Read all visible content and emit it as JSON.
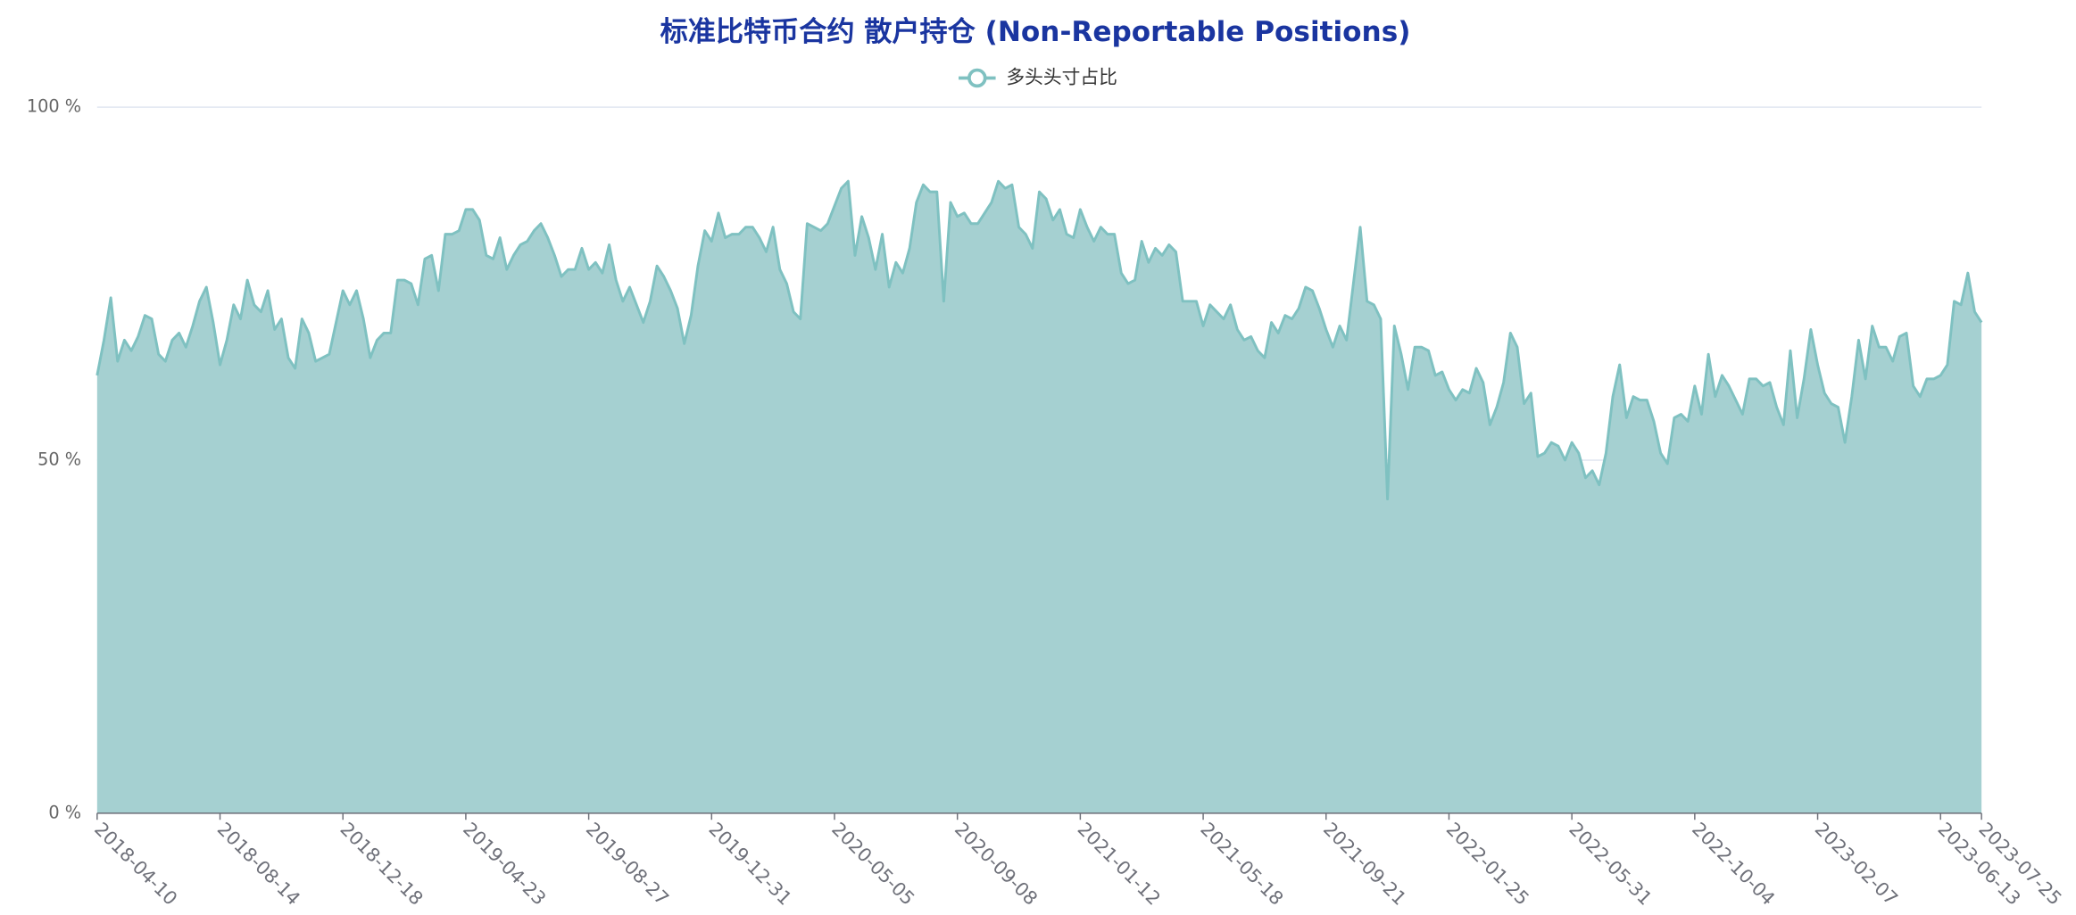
{
  "chart_data": {
    "type": "area",
    "title": "标准比特币合约 散户持仓 (Non-Reportable Positions)",
    "categories": [
      "2018-04-10",
      null,
      null,
      null,
      null,
      null,
      null,
      null,
      null,
      null,
      null,
      null,
      null,
      null,
      null,
      null,
      null,
      null,
      "2018-08-14",
      null,
      null,
      null,
      null,
      null,
      null,
      null,
      null,
      null,
      null,
      null,
      null,
      null,
      null,
      null,
      null,
      null,
      "2018-12-18",
      null,
      null,
      null,
      null,
      null,
      null,
      null,
      null,
      null,
      null,
      null,
      null,
      null,
      null,
      null,
      null,
      null,
      "2019-04-23",
      null,
      null,
      null,
      null,
      null,
      null,
      null,
      null,
      null,
      null,
      null,
      null,
      null,
      null,
      null,
      null,
      null,
      "2019-08-27",
      null,
      null,
      null,
      null,
      null,
      null,
      null,
      null,
      null,
      null,
      null,
      null,
      null,
      null,
      null,
      null,
      null,
      "2019-12-31",
      null,
      null,
      null,
      null,
      null,
      null,
      null,
      null,
      null,
      null,
      null,
      null,
      null,
      null,
      null,
      null,
      null,
      "2020-05-05",
      null,
      null,
      null,
      null,
      null,
      null,
      null,
      null,
      null,
      null,
      null,
      null,
      null,
      null,
      null,
      null,
      null,
      "2020-09-08",
      null,
      null,
      null,
      null,
      null,
      null,
      null,
      null,
      null,
      null,
      null,
      null,
      null,
      null,
      null,
      null,
      null,
      "2021-01-12",
      null,
      null,
      null,
      null,
      null,
      null,
      null,
      null,
      null,
      null,
      null,
      null,
      null,
      null,
      null,
      null,
      null,
      "2021-05-18",
      null,
      null,
      null,
      null,
      null,
      null,
      null,
      null,
      null,
      null,
      null,
      null,
      null,
      null,
      null,
      null,
      null,
      "2021-09-21",
      null,
      null,
      null,
      null,
      null,
      null,
      null,
      null,
      null,
      null,
      null,
      null,
      null,
      null,
      null,
      null,
      null,
      "2022-01-25",
      null,
      null,
      null,
      null,
      null,
      null,
      null,
      null,
      null,
      null,
      null,
      null,
      null,
      null,
      null,
      null,
      null,
      "2022-05-31",
      null,
      null,
      null,
      null,
      null,
      null,
      null,
      null,
      null,
      null,
      null,
      null,
      null,
      null,
      null,
      null,
      null,
      "2022-10-04",
      null,
      null,
      null,
      null,
      null,
      null,
      null,
      null,
      null,
      null,
      null,
      null,
      null,
      null,
      null,
      null,
      null,
      "2023-02-07",
      null,
      null,
      null,
      null,
      null,
      null,
      null,
      null,
      null,
      null,
      null,
      null,
      null,
      null,
      null,
      null,
      null,
      "2023-06-13",
      null,
      null,
      null,
      null,
      null,
      "2023-07-25"
    ],
    "series": [
      {
        "name": "多头头寸占比",
        "color": "#7fc1c1",
        "fill": "#a5d0d1",
        "values": [
          62,
          67,
          73,
          64,
          67,
          65.5,
          67.5,
          70.5,
          70,
          65,
          64,
          67,
          68,
          66,
          69,
          72.5,
          74.5,
          69.5,
          63.5,
          67,
          72,
          70,
          75.5,
          72,
          71,
          74,
          68.5,
          70,
          64.5,
          63,
          70,
          68,
          64,
          64.5,
          65,
          69.5,
          74,
          72,
          74,
          70,
          64.5,
          67,
          68,
          68,
          75.5,
          75.5,
          75,
          72,
          78.5,
          79,
          74,
          82,
          82,
          82.5,
          85.5,
          85.5,
          84,
          79,
          78.5,
          81.5,
          77,
          79,
          80.5,
          81,
          82.5,
          83.5,
          81.5,
          79,
          76,
          77,
          77,
          80,
          77,
          78,
          76.5,
          80.5,
          75.5,
          72.5,
          74.5,
          72,
          69.5,
          72.5,
          77.5,
          76,
          74,
          71.5,
          66.5,
          70.5,
          77.5,
          82.5,
          81,
          85,
          81.5,
          82,
          82,
          83,
          83,
          81.5,
          79.5,
          83,
          77,
          75,
          71,
          70,
          83.5,
          83,
          82.5,
          83.5,
          86,
          88.5,
          89.5,
          79,
          84.5,
          81.5,
          77,
          82,
          74.5,
          78,
          76.5,
          80,
          86.5,
          89,
          88,
          88,
          72.5,
          86.5,
          84.5,
          85,
          83.5,
          83.5,
          85,
          86.5,
          89.5,
          88.5,
          89,
          83,
          82,
          80,
          88,
          87,
          84,
          85.5,
          82,
          81.5,
          85.5,
          83,
          81,
          83,
          82,
          82,
          76.5,
          75,
          75.5,
          81,
          78,
          80,
          79,
          80.5,
          79.5,
          72.5,
          72.5,
          72.5,
          69,
          72,
          71,
          70,
          72,
          68.5,
          67,
          67.5,
          65.5,
          64.5,
          69.5,
          68,
          70.5,
          70,
          71.5,
          74.5,
          74,
          71.5,
          68.5,
          66,
          69,
          67,
          75,
          83,
          72.5,
          72,
          70,
          44.5,
          69,
          65,
          60,
          66,
          66,
          65.5,
          62,
          62.5,
          60,
          58.5,
          60,
          59.5,
          63,
          61,
          55,
          57.5,
          61,
          68,
          66,
          58,
          59.5,
          50.5,
          51,
          52.5,
          52,
          50,
          52.5,
          51,
          47.5,
          48.5,
          46.5,
          51,
          59,
          63.5,
          56,
          59,
          58.5,
          58.5,
          55.5,
          51,
          49.5,
          56,
          56.5,
          55.5,
          60.5,
          56.5,
          65,
          59,
          62,
          60.5,
          58.5,
          56.5,
          61.5,
          61.5,
          60.5,
          61,
          57.5,
          55,
          65.5,
          56,
          61.5,
          68.5,
          63.5,
          59.5,
          58,
          57.5,
          52.5,
          59,
          67,
          61.5,
          69,
          66,
          66,
          64,
          67.5,
          68,
          60.5,
          59,
          61.5,
          61.5,
          62,
          63.5,
          72.5,
          72,
          76.5,
          71,
          69.5
        ]
      }
    ],
    "ylim": [
      0,
      100
    ],
    "yticks": [
      {
        "value": 0,
        "label": "0 %"
      },
      {
        "value": 50,
        "label": "50 %"
      },
      {
        "value": 100,
        "label": "100 %"
      }
    ],
    "grid": true
  }
}
